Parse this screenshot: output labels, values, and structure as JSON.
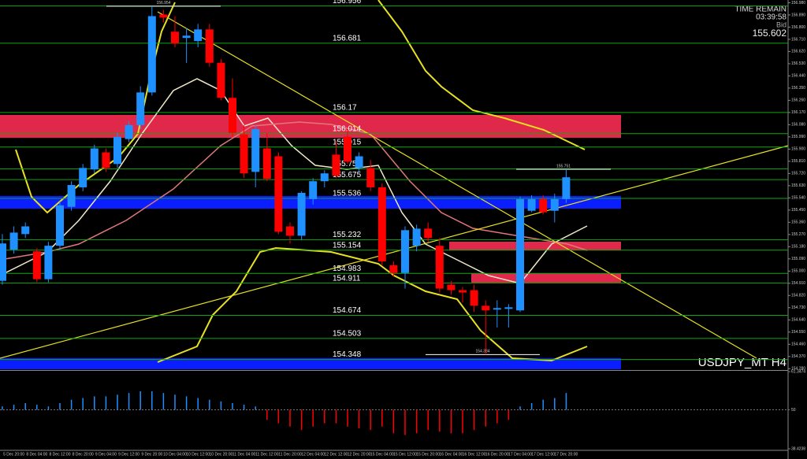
{
  "chart_data": {
    "type": "candlestick",
    "symbol": "USDJPY_MT H4",
    "info": {
      "time_label": "TIME REMAIN",
      "time": "03:39:58",
      "bid_label": "Bid",
      "bid": "155.602"
    },
    "categories": [
      null,
      "5 Dec 20:00",
      null,
      "8 Dec 04:00",
      null,
      "8 Dec 12:00",
      null,
      "8 Dec 20:00",
      null,
      "9 Dec 04:00",
      null,
      "9 Dec 12:00",
      null,
      "9 Dec 20:00",
      null,
      "10 Dec 04:00",
      null,
      "10 Dec 12:00",
      null,
      "10 Dec 20:00",
      null,
      "11 Dec 04:00",
      null,
      "11 Dec 12:00",
      null,
      "11 Dec 20:00",
      null,
      "12 Dec 04:00",
      null,
      "12 Dec 12:00",
      null,
      "12 Dec 20:00",
      null,
      "15 Dec 04:00",
      null,
      "15 Dec 12:00",
      null,
      "15 Dec 20:00",
      null,
      "16 Dec 04:00",
      null,
      "16 Dec 12:00",
      null,
      "16 Dec 20:00",
      null,
      "17 Dec 04:00",
      null,
      "17 Dec 12:00",
      null,
      "17 Dec 20:00"
    ],
    "open": [
      154.928,
      155.158,
      155.273,
      155.146,
      154.94,
      155.187,
      155.474,
      155.618,
      155.75,
      155.876,
      155.79,
      155.974,
      156.077,
      156.318,
      156.893,
      156.766,
      156.72,
      156.697,
      156.783,
      156.537,
      156.278,
      156.008,
      155.732,
      155.905,
      155.847,
      155.33,
      155.261,
      155.531,
      155.663,
      155.859,
      155.991,
      155.761,
      155.761,
      155.618,
      155.043,
      154.986,
      155.187,
      155.313,
      155.187,
      154.9,
      154.859,
      154.859,
      154.744,
      154.716,
      154.721,
      154.71,
      155.445,
      155.531,
      155.445,
      155.531
    ],
    "high": [
      155.273,
      155.33,
      155.359,
      155.169,
      155.216,
      155.514,
      155.663,
      155.79,
      155.933,
      155.905,
      156.02,
      156.106,
      156.364,
      156.954,
      156.927,
      156.881,
      156.795,
      156.824,
      156.824,
      156.565,
      156.422,
      156.077,
      156.077,
      156.02,
      155.876,
      155.359,
      155.589,
      155.686,
      155.744,
      155.962,
      156.048,
      155.876,
      155.819,
      155.646,
      155.072,
      155.33,
      155.342,
      155.359,
      155.244,
      154.928,
      154.882,
      154.9,
      154.785,
      154.785,
      154.756,
      155.549,
      155.56,
      155.56,
      155.572,
      155.751
    ],
    "low": [
      154.9,
      155.129,
      155.244,
      154.917,
      154.917,
      155.158,
      155.445,
      155.589,
      155.721,
      155.732,
      155.761,
      155.951,
      156.048,
      156.295,
      156.835,
      156.651,
      156.536,
      156.651,
      156.508,
      156.261,
      155.991,
      155.686,
      155.618,
      155.663,
      155.273,
      155.204,
      155.227,
      155.491,
      155.618,
      155.686,
      155.79,
      155.732,
      155.589,
      155.043,
      154.957,
      154.871,
      155.146,
      155.215,
      154.842,
      154.825,
      154.768,
      154.698,
      154.384,
      154.584,
      154.584,
      154.698,
      155.434,
      155.417,
      155.359,
      155.503
    ],
    "close": [
      155.204,
      155.284,
      155.33,
      154.94,
      155.187,
      155.485,
      155.635,
      155.761,
      155.905,
      155.761,
      155.991,
      156.077,
      156.318,
      156.881,
      156.87,
      156.68,
      156.737,
      156.783,
      156.537,
      156.278,
      156.02,
      155.721,
      156.048,
      155.681,
      155.29,
      155.261,
      155.577,
      155.663,
      155.721,
      155.704,
      155.807,
      155.847,
      155.618,
      155.072,
      154.986,
      155.302,
      155.313,
      155.244,
      154.871,
      154.859,
      154.842,
      154.744,
      154.71,
      154.727,
      154.733,
      155.531,
      155.531,
      155.434,
      155.531,
      155.692
    ],
    "up_color": "#1e90ff",
    "down_color": "#ff0000",
    "levels": [
      156.956,
      156.681,
      156.17,
      156.014,
      155.915,
      155.755,
      155.675,
      155.536,
      155.232,
      155.154,
      154.983,
      154.911,
      154.674,
      154.503,
      154.348
    ],
    "level_color": "#0fa80f",
    "marker_labels": [
      156.954,
      155.751,
      154.384
    ],
    "ylim": [
      154.27,
      157.0
    ],
    "yticks": [
      {
        "value": 154.28,
        "label": "154.280"
      },
      {
        "value": 154.37,
        "label": "154.370"
      },
      {
        "value": 154.46,
        "label": "154.460"
      },
      {
        "value": 154.55,
        "label": "154.550"
      },
      {
        "value": 154.64,
        "label": "154.640"
      },
      {
        "value": 154.73,
        "label": "154.730"
      },
      {
        "value": 154.82,
        "label": "154.820"
      },
      {
        "value": 154.91,
        "label": "154.910"
      },
      {
        "value": 155.0,
        "label": "155.000"
      },
      {
        "value": 155.09,
        "label": "155.090"
      },
      {
        "value": 155.18,
        "label": "155.180"
      },
      {
        "value": 155.27,
        "label": "155.270"
      },
      {
        "value": 155.36,
        "label": "155.360"
      },
      {
        "value": 155.45,
        "label": "155.450"
      },
      {
        "value": 155.54,
        "label": "155.540"
      },
      {
        "value": 155.63,
        "label": "155.630"
      },
      {
        "value": 155.72,
        "label": "155.720"
      },
      {
        "value": 155.81,
        "label": "155.810"
      },
      {
        "value": 155.9,
        "label": "155.900"
      },
      {
        "value": 155.99,
        "label": "155.990"
      },
      {
        "value": 156.08,
        "label": "156.080"
      },
      {
        "value": 156.17,
        "label": "156.170"
      },
      {
        "value": 156.26,
        "label": "156.260"
      },
      {
        "value": 156.35,
        "label": "156.350"
      },
      {
        "value": 156.44,
        "label": "156.440"
      },
      {
        "value": 156.53,
        "label": "156.530"
      },
      {
        "value": 156.62,
        "label": "156.620"
      },
      {
        "value": 156.71,
        "label": "156.710"
      },
      {
        "value": 156.8,
        "label": "156.800"
      },
      {
        "value": 156.89,
        "label": "156.890"
      },
      {
        "value": 156.98,
        "label": "156.980"
      }
    ],
    "indicator": {
      "values": [
        51,
        51.5,
        52,
        51.5,
        51,
        52,
        53,
        53.5,
        54,
        54,
        54.5,
        55,
        55.5,
        55.5,
        55,
        54.5,
        54,
        53.5,
        53,
        52.5,
        52,
        51.5,
        51,
        47,
        46,
        45,
        44,
        45,
        46,
        46,
        45,
        44.5,
        44,
        45,
        43,
        42.5,
        43,
        44,
        43.5,
        43,
        43,
        44,
        45,
        46,
        47,
        51,
        52,
        53,
        53.5,
        55
      ],
      "ylim": [
        38.4238,
        61.3474
      ],
      "yticks": [
        61.3474,
        50,
        38.4238
      ]
    }
  }
}
